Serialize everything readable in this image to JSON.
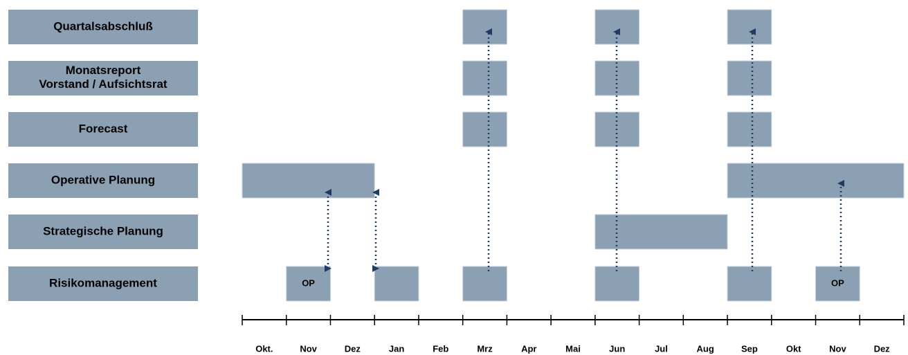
{
  "rows": [
    "Quartalsabschluß",
    "Monatsreport\nVorstand / Aufsichtsrat",
    "Forecast",
    "Operative Planung",
    "Strategische Planung",
    "Risikomanagement"
  ],
  "months": [
    "Okt.",
    "Nov",
    "Dez",
    "Jan",
    "Feb",
    "Mrz",
    "Apr",
    "Mai",
    "Jun",
    "Jul",
    "Aug",
    "Sep",
    "Okt",
    "Nov",
    "Dez"
  ],
  "bar_labels": [
    "OP",
    "OP"
  ]
}
